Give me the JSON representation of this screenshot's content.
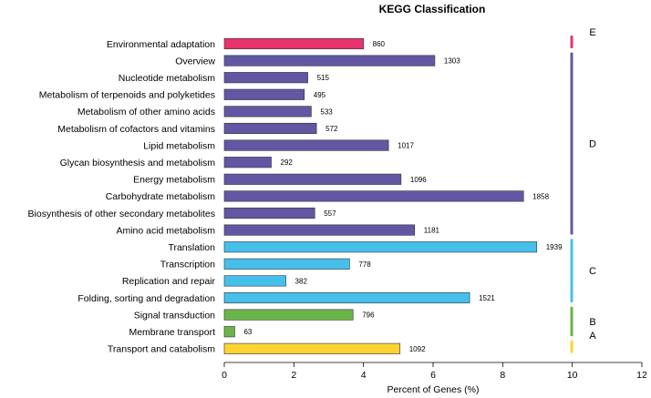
{
  "chart_data": {
    "type": "bar",
    "orientation": "horizontal",
    "title": "KEGG Classification",
    "xlabel": "Percent of Genes (%)",
    "ylabel": "",
    "xlim": [
      0,
      12
    ],
    "xticks": [
      "0",
      "2",
      "4",
      "6",
      "8",
      "10",
      "12"
    ],
    "grid": false,
    "categories": [
      "Environmental adaptation",
      "Overview",
      "Nucleotide metabolism",
      "Metabolism of terpenoids and polyketides",
      "Metabolism of other amino acids",
      "Metabolism of cofactors and vitamins",
      "Lipid metabolism",
      "Glycan biosynthesis and metabolism",
      "Energy metabolism",
      "Carbohydrate metabolism",
      "Biosynthesis of other secondary metabolites",
      "Amino acid metabolism",
      "Translation",
      "Transcription",
      "Replication and repair",
      "Folding, sorting and degradation",
      "Signal transduction",
      "Membrane transport",
      "Transport and catabolism"
    ],
    "values": [
      4.0,
      6.05,
      2.4,
      2.3,
      2.5,
      2.65,
      4.72,
      1.35,
      5.08,
      8.6,
      2.6,
      5.47,
      8.98,
      3.6,
      1.77,
      7.05,
      3.7,
      0.3,
      5.05
    ],
    "gene_counts": [
      "860",
      "1303",
      "515",
      "495",
      "533",
      "572",
      "1017",
      "292",
      "1096",
      "1858",
      "557",
      "1181",
      "1939",
      "778",
      "382",
      "1521",
      "796",
      "63",
      "1092"
    ],
    "groups": [
      {
        "label": "E",
        "start": 0,
        "end": 0,
        "color": "#e8336d"
      },
      {
        "label": "D",
        "start": 1,
        "end": 11,
        "color": "#6257a3"
      },
      {
        "label": "C",
        "start": 12,
        "end": 15,
        "color": "#45c0ea"
      },
      {
        "label": "B",
        "start": 16,
        "end": 17,
        "color": "#6ab549"
      },
      {
        "label": "A",
        "start": 18,
        "end": 18,
        "color": "#fdd333"
      }
    ]
  }
}
